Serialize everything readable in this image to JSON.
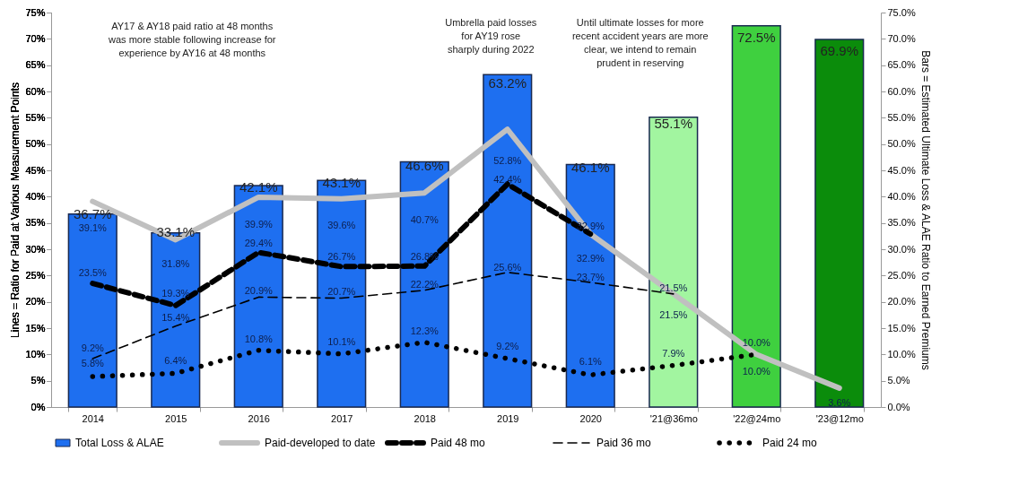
{
  "chart_data": {
    "type": "bar",
    "categories": [
      "2014",
      "2015",
      "2016",
      "2017",
      "2018",
      "2019",
      "2020",
      "'21@36mo",
      "'22@24mo",
      "'23@12mo"
    ],
    "ylabel": "Lines = Ratio for Paid at Various Measurement Points",
    "y2label": "Bars = Estimated Ultimate Loss & ALAE Ratio to Earned Premiums",
    "ylim": [
      0,
      75
    ],
    "yticks": [
      {
        "value": 0,
        "label": "0%"
      },
      {
        "value": 5,
        "label": "5%"
      },
      {
        "value": 10,
        "label": "10%"
      },
      {
        "value": 15,
        "label": "15%"
      },
      {
        "value": 20,
        "label": "20%"
      },
      {
        "value": 25,
        "label": "25%"
      },
      {
        "value": 30,
        "label": "30%"
      },
      {
        "value": 35,
        "label": "35%"
      },
      {
        "value": 40,
        "label": "40%"
      },
      {
        "value": 45,
        "label": "45%"
      },
      {
        "value": 50,
        "label": "50%"
      },
      {
        "value": 55,
        "label": "55%"
      },
      {
        "value": 60,
        "label": "60%"
      },
      {
        "value": 65,
        "label": "65%"
      },
      {
        "value": 70,
        "label": "70%"
      },
      {
        "value": 75,
        "label": "75%"
      }
    ],
    "y2lim": [
      0,
      75
    ],
    "y2ticks": [
      {
        "value": 0,
        "label": "0.0%"
      },
      {
        "value": 5,
        "label": "5.0%"
      },
      {
        "value": 10,
        "label": "10.0%"
      },
      {
        "value": 15,
        "label": "15.0%"
      },
      {
        "value": 20,
        "label": "20.0%"
      },
      {
        "value": 25,
        "label": "25.0%"
      },
      {
        "value": 30,
        "label": "30.0%"
      },
      {
        "value": 35,
        "label": "35.0%"
      },
      {
        "value": 40,
        "label": "40.0%"
      },
      {
        "value": 45,
        "label": "45.0%"
      },
      {
        "value": 50,
        "label": "50.0%"
      },
      {
        "value": 55,
        "label": "55.0%"
      },
      {
        "value": 60,
        "label": "60.0%"
      },
      {
        "value": 65,
        "label": "65.0%"
      },
      {
        "value": 70,
        "label": "70.0%"
      },
      {
        "value": 75,
        "label": "75.0%"
      }
    ],
    "series": [
      {
        "name": "Total Loss & ALAE",
        "axis": "y2",
        "color": "#1e6ff0",
        "colors": [
          "#1e6ff0",
          "#1e6ff0",
          "#1e6ff0",
          "#1e6ff0",
          "#1e6ff0",
          "#1e6ff0",
          "#1e6ff0",
          "#a2f5a0",
          "#3fd03f",
          "#0b8c0b"
        ],
        "values": [
          36.7,
          33.1,
          42.1,
          43.1,
          46.6,
          63.2,
          46.1,
          55.1,
          72.5,
          69.9
        ],
        "value_labels": [
          "36.7%",
          "33.1%",
          "42.1%",
          "43.1%",
          "46.6%",
          "63.2%",
          "46.1%",
          "55.1%",
          "72.5%",
          "69.9%"
        ]
      },
      {
        "name": "Paid-developed to date",
        "type": "line",
        "line_style": "solid",
        "color": "#c0c0c0",
        "values": [
          39.1,
          31.8,
          39.9,
          39.6,
          40.7,
          52.8,
          32.9,
          21.5,
          10.0,
          3.6
        ],
        "value_labels": [
          "39.1%",
          "31.8%",
          "39.9%",
          "39.6%",
          "40.7%",
          "52.8%",
          "32.9%",
          "21.5%",
          "10.0%",
          "3.6%"
        ]
      },
      {
        "name": "Paid 48 mo",
        "type": "line",
        "line_style": "dashed",
        "color": "#000000",
        "values": [
          23.5,
          19.3,
          29.4,
          26.7,
          26.8,
          42.4,
          32.9,
          null,
          null,
          null
        ],
        "value_labels": [
          "23.5%",
          "19.3%",
          "29.4%",
          "26.7%",
          "26.8%",
          "42.4%",
          "32.9%",
          null,
          null,
          null
        ]
      },
      {
        "name": "Paid 36 mo",
        "type": "line",
        "line_style": "dashed",
        "color": "#000000",
        "values": [
          9.2,
          15.4,
          20.9,
          20.7,
          22.2,
          25.6,
          23.7,
          21.5,
          null,
          null
        ],
        "value_labels": [
          "9.2%",
          "15.4%",
          "20.9%",
          "20.7%",
          "22.2%",
          "25.6%",
          "23.7%",
          "21.5%",
          null,
          null
        ]
      },
      {
        "name": "Paid 24 mo",
        "type": "line",
        "line_style": "dotted",
        "color": "#000000",
        "values": [
          5.8,
          6.4,
          10.8,
          10.1,
          12.3,
          9.2,
          6.1,
          7.9,
          10.0,
          null
        ],
        "value_labels": [
          "5.8%",
          "6.4%",
          "10.8%",
          "10.1%",
          "12.3%",
          "9.2%",
          "6.1%",
          "7.9%",
          "10.0%",
          null
        ]
      }
    ],
    "marker": "none",
    "grid": false,
    "legend": "bottom",
    "annotations": [
      "AY17 & AY18 paid ratio at 48 months was more stable following increase for experience by AY16 at 48 months",
      "Umbrella paid losses for AY19 rose sharply during 2022",
      "Until ultimate losses for more recent accident years are more clear, we intend to remain prudent in reserving"
    ]
  }
}
